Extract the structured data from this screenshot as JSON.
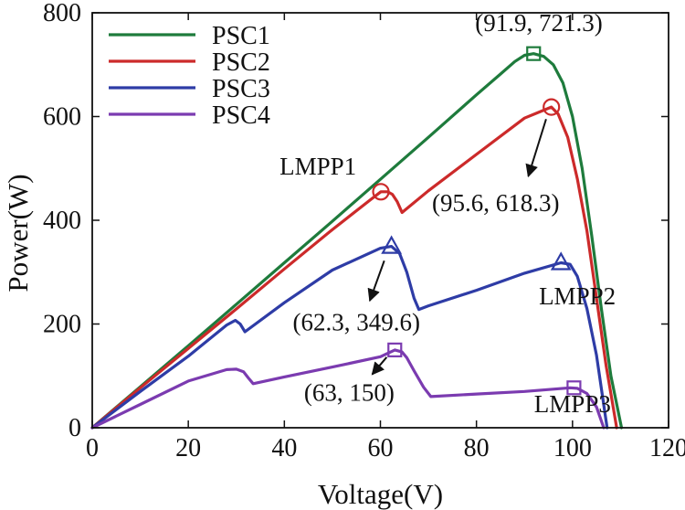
{
  "chart_data": {
    "type": "line",
    "title": "",
    "xlabel": "Voltage(V)",
    "ylabel": "Power(W)",
    "xlim": [
      0,
      120
    ],
    "ylim": [
      0,
      800
    ],
    "xticks": [
      0,
      20,
      40,
      60,
      80,
      100,
      120
    ],
    "yticks": [
      0,
      200,
      400,
      600,
      800
    ],
    "grid": false,
    "legend": {
      "position": "top-left",
      "entries": [
        "PSC1",
        "PSC2",
        "PSC3",
        "PSC4"
      ]
    },
    "series": [
      {
        "name": "PSC1",
        "color": "#1e7b3c",
        "x": [
          0,
          10,
          20,
          30,
          40,
          50,
          60,
          70,
          80,
          85,
          88,
          90,
          91.9,
          94,
          96,
          98,
          100,
          102,
          104,
          106,
          108,
          110.2
        ],
        "y": [
          0,
          79,
          158,
          238,
          318,
          398,
          479,
          560,
          642,
          682,
          706,
          718,
          721.3,
          716,
          700,
          665,
          600,
          500,
          370,
          230,
          100,
          0
        ]
      },
      {
        "name": "PSC2",
        "color": "#cc2a2a",
        "x": [
          0,
          10,
          20,
          30,
          40,
          50,
          58,
          60.1,
          61.5,
          62.5,
          63.5,
          64.5,
          70,
          80,
          90,
          95.6,
          97,
          99,
          101,
          103,
          105,
          107,
          109.2
        ],
        "y": [
          0,
          77,
          153,
          229,
          306,
          382,
          440,
          455,
          455,
          450,
          436,
          415,
          457,
          527,
          597,
          618.3,
          605,
          560,
          480,
          380,
          250,
          120,
          0
        ]
      },
      {
        "name": "PSC3",
        "color": "#2e3ca6",
        "x": [
          0,
          10,
          20,
          28,
          29.8,
          30.8,
          31.8,
          40,
          50,
          60,
          62.3,
          64,
          65.5,
          67,
          68,
          70,
          80,
          90,
          97.6,
          99.5,
          101,
          103,
          105,
          107.2
        ],
        "y": [
          0,
          70,
          138,
          198,
          207,
          200,
          185,
          241,
          304,
          346,
          349.6,
          336,
          300,
          250,
          228,
          235,
          265,
          298,
          318,
          315,
          292,
          230,
          140,
          0
        ]
      },
      {
        "name": "PSC4",
        "color": "#7b3bb0",
        "x": [
          0,
          10,
          20,
          28,
          30,
          31.5,
          32.5,
          33.5,
          40,
          50,
          60,
          63,
          64.5,
          65.5,
          67,
          69,
          70.5,
          80,
          90,
          99.5,
          101,
          103,
          105,
          106.5
        ],
        "y": [
          0,
          45,
          90,
          112,
          113,
          108,
          96,
          85,
          98,
          117,
          137,
          150,
          146,
          135,
          110,
          78,
          60,
          65,
          70,
          77,
          76,
          66,
          40,
          0
        ]
      }
    ],
    "markers": [
      {
        "name": "psc1-gmpp-marker",
        "shape": "square",
        "x": 91.9,
        "y": 721.3,
        "color": "#1e7b3c"
      },
      {
        "name": "psc2-lmpp1-marker",
        "shape": "circle",
        "x": 60.1,
        "y": 455,
        "color": "#cc2a2a"
      },
      {
        "name": "psc2-gmpp-marker",
        "shape": "circle",
        "x": 95.6,
        "y": 618.3,
        "color": "#cc2a2a"
      },
      {
        "name": "psc3-gmpp-marker",
        "shape": "triangle",
        "x": 62.3,
        "y": 349.6,
        "color": "#2e3ca6"
      },
      {
        "name": "psc3-lmpp2-marker",
        "shape": "triangle",
        "x": 97.6,
        "y": 318,
        "color": "#2e3ca6"
      },
      {
        "name": "psc4-gmpp-marker",
        "shape": "square",
        "x": 63,
        "y": 150,
        "color": "#7b3bb0"
      },
      {
        "name": "psc4-lmpp3-marker",
        "shape": "square",
        "x": 100.3,
        "y": 77,
        "color": "#7b3bb0"
      }
    ],
    "annotations": [
      {
        "name": "psc1-gmpp-label",
        "text": "(91.9, 721.3)",
        "x": 93,
        "y": 765
      },
      {
        "name": "lmpp1-label",
        "text": "LMPP1",
        "x": 47,
        "y": 488
      },
      {
        "name": "psc2-gmpp-label",
        "text": "(95.6, 618.3)",
        "x": 84,
        "y": 418
      },
      {
        "name": "psc3-gmpp-label",
        "text": "(62.3, 349.6)",
        "x": 55,
        "y": 188
      },
      {
        "name": "lmpp2-label",
        "text": "LMPP2",
        "x": 101,
        "y": 238
      },
      {
        "name": "psc4-gmpp-label",
        "text": "(63, 150)",
        "x": 53.5,
        "y": 52
      },
      {
        "name": "lmpp3-label",
        "text": "LMPP3",
        "x": 100,
        "y": 30
      }
    ],
    "arrows": [
      {
        "name": "psc2-gmpp-arrow",
        "from": [
          94.5,
          595
        ],
        "to": [
          90.8,
          485
        ]
      },
      {
        "name": "psc3-gmpp-arrow",
        "from": [
          60.8,
          322
        ],
        "to": [
          57.8,
          245
        ]
      },
      {
        "name": "psc4-gmpp-arrow",
        "from": [
          61.3,
          136
        ],
        "to": [
          58.3,
          103
        ]
      }
    ]
  }
}
